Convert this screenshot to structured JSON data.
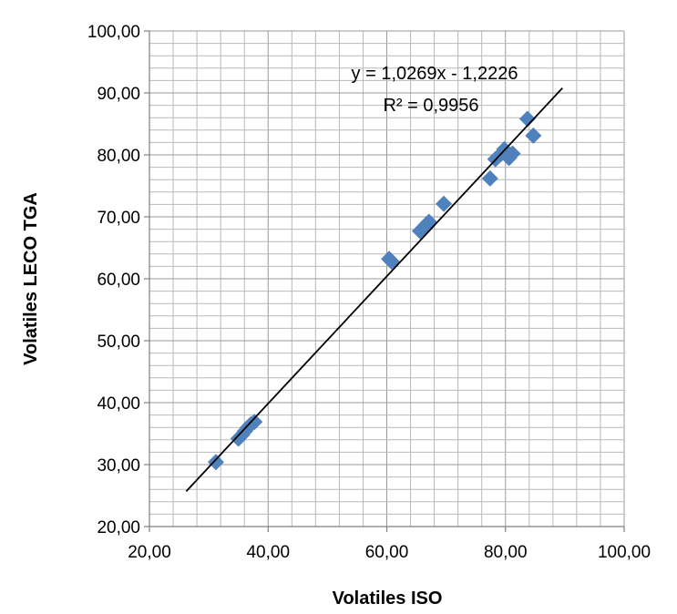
{
  "chart_data": {
    "type": "scatter",
    "xlabel": "Volatiles ISO",
    "ylabel": "Volatiles LECO TGA",
    "xlim": [
      20,
      100
    ],
    "ylim": [
      20,
      100
    ],
    "x_ticks": [
      "20,00",
      "40,00",
      "60,00",
      "80,00",
      "100,00"
    ],
    "y_ticks": [
      "20,00",
      "30,00",
      "40,00",
      "50,00",
      "60,00",
      "70,00",
      "80,00",
      "90,00",
      "100,00"
    ],
    "grid": true,
    "minor_grid": true,
    "marker_color": "#4f81bd",
    "marker_shape": "diamond",
    "points": [
      {
        "x": 31.2,
        "y": 30.4
      },
      {
        "x": 35.0,
        "y": 34.2
      },
      {
        "x": 35.6,
        "y": 34.8
      },
      {
        "x": 36.1,
        "y": 35.4
      },
      {
        "x": 36.6,
        "y": 36.0
      },
      {
        "x": 37.1,
        "y": 36.5
      },
      {
        "x": 37.7,
        "y": 36.9
      },
      {
        "x": 60.4,
        "y": 63.2
      },
      {
        "x": 60.8,
        "y": 62.8
      },
      {
        "x": 65.6,
        "y": 67.7
      },
      {
        "x": 66.1,
        "y": 68.2
      },
      {
        "x": 66.6,
        "y": 68.7
      },
      {
        "x": 67.1,
        "y": 69.2
      },
      {
        "x": 69.6,
        "y": 72.1
      },
      {
        "x": 77.4,
        "y": 76.2
      },
      {
        "x": 78.3,
        "y": 79.3
      },
      {
        "x": 79.2,
        "y": 80.1
      },
      {
        "x": 79.8,
        "y": 80.9
      },
      {
        "x": 80.6,
        "y": 79.5
      },
      {
        "x": 81.2,
        "y": 80.2
      },
      {
        "x": 83.7,
        "y": 85.8
      },
      {
        "x": 84.7,
        "y": 83.1
      }
    ],
    "trendline": {
      "slope": 1.0269,
      "intercept": -1.2226,
      "x_range": [
        26.2,
        89.6
      ],
      "color": "#000000"
    },
    "equation": "y = 1,0269x - 1,2226",
    "r_squared": "R² = 0,9956"
  }
}
